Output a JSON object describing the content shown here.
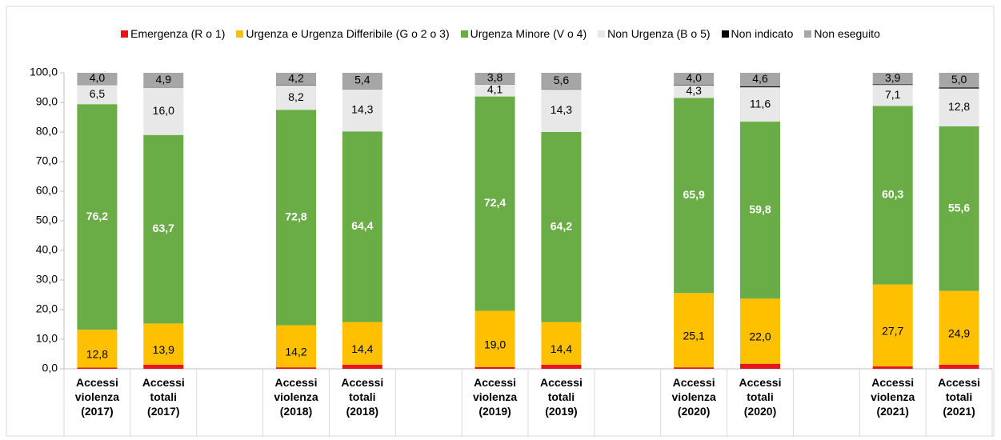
{
  "chart_data": {
    "type": "stacked_bar",
    "categories": [
      "Accessi violenza (2017)",
      "Accessi totali (2017)",
      null,
      "Accessi violenza (2018)",
      "Accessi totali (2018)",
      null,
      "Accessi violenza (2019)",
      "Accessi totali (2019)",
      null,
      "Accessi violenza (2020)",
      "Accessi totali (2020)",
      null,
      "Accessi violenza (2021)",
      "Accessi totali (2021)"
    ],
    "series": [
      {
        "name": "Emergenza (R o 1)",
        "color": "#e8141b",
        "values": [
          0.4,
          1.4,
          null,
          0.5,
          1.4,
          null,
          0.6,
          1.4,
          null,
          0.5,
          1.7,
          null,
          0.8,
          1.4
        ]
      },
      {
        "name": "Urgenza e Urgenza Differibile (G o 2 o 3)",
        "color": "#ffc000",
        "values": [
          12.8,
          13.9,
          null,
          14.2,
          14.4,
          null,
          19.0,
          14.4,
          null,
          25.1,
          22.0,
          null,
          27.7,
          24.9
        ],
        "value_labels": [
          "12,8",
          "13,9",
          null,
          "14,2",
          "14,4",
          null,
          "19,0",
          "14,4",
          null,
          "25,1",
          "22,0",
          null,
          "27,7",
          "24,9"
        ]
      },
      {
        "name": "Urgenza Minore (V o 4)",
        "color": "#6aac46",
        "values": [
          76.2,
          63.7,
          null,
          72.8,
          64.4,
          null,
          72.4,
          64.2,
          null,
          65.9,
          59.8,
          null,
          60.3,
          55.6
        ],
        "value_labels": [
          "76,2",
          "63,7",
          null,
          "72,8",
          "64,4",
          null,
          "72,4",
          "64,2",
          null,
          "65,9",
          "59,8",
          null,
          "60,3",
          "55,6"
        ]
      },
      {
        "name": "Non Urgenza (B o 5)",
        "color": "#e8e8e8",
        "values": [
          6.5,
          16.0,
          null,
          8.2,
          14.3,
          null,
          4.1,
          14.3,
          null,
          4.3,
          11.6,
          null,
          7.1,
          12.8
        ],
        "value_labels": [
          "6,5",
          "16,0",
          null,
          "8,2",
          "14,3",
          null,
          "4,1",
          "14,3",
          null,
          "4,3",
          "11,6",
          null,
          "7,1",
          "12,8"
        ]
      },
      {
        "name": "Non indicato",
        "color": "#000000",
        "values": [
          0.1,
          0.1,
          null,
          0.1,
          0.1,
          null,
          0.1,
          0.1,
          null,
          0.2,
          0.3,
          null,
          0.2,
          0.3
        ]
      },
      {
        "name": "Non eseguito",
        "color": "#a6a6a6",
        "values": [
          4.0,
          4.9,
          null,
          4.2,
          5.4,
          null,
          3.8,
          5.6,
          null,
          4.0,
          4.6,
          null,
          3.9,
          5.0
        ],
        "value_labels": [
          "4,0",
          "4,9",
          null,
          "4,2",
          "5,4",
          null,
          "3,8",
          "5,6",
          null,
          "4,0",
          "4,6",
          null,
          "3,9",
          "5,0"
        ]
      }
    ],
    "ylim": [
      0,
      100
    ],
    "yticks": [
      {
        "value": 0,
        "label": "0,0"
      },
      {
        "value": 10,
        "label": "10,0"
      },
      {
        "value": 20,
        "label": "20,0"
      },
      {
        "value": 30,
        "label": "30,0"
      },
      {
        "value": 40,
        "label": "40,0"
      },
      {
        "value": 50,
        "label": "50,0"
      },
      {
        "value": 60,
        "label": "60,0"
      },
      {
        "value": 70,
        "label": "70,0"
      },
      {
        "value": 80,
        "label": "80,0"
      },
      {
        "value": 90,
        "label": "90,0"
      },
      {
        "value": 100,
        "label": "100,0"
      }
    ],
    "legend": "top"
  }
}
